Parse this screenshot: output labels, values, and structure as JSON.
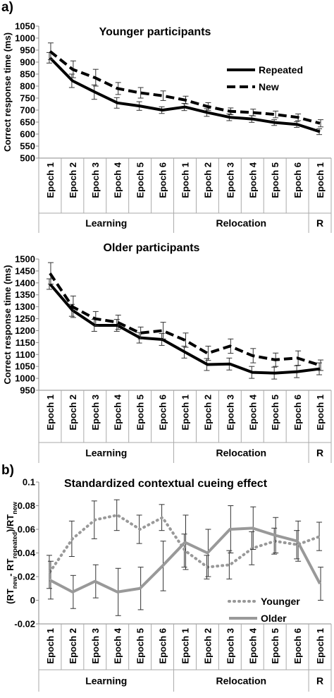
{
  "chart_data": [
    {
      "panel_label": "a)",
      "type": "line",
      "title": "Younger participants",
      "ylabel": "Correct response time (ms)",
      "ylim": [
        500,
        1050
      ],
      "yticks": [
        "500",
        "550",
        "600",
        "650",
        "700",
        "750",
        "800",
        "850",
        "900",
        "950",
        "1000",
        "1050"
      ],
      "categories": [
        "Epoch 1",
        "Epoch 2",
        "Epoch 3",
        "Epoch 4",
        "Epoch 5",
        "Epoch 6",
        "Epoch 1",
        "Epoch 2",
        "Epoch 3",
        "Epoch 4",
        "Epoch 5",
        "Epoch 6",
        "Epoch 1"
      ],
      "groups": [
        {
          "label": "Learning",
          "span": 6
        },
        {
          "label": "Relocation",
          "span": 6
        },
        {
          "label": "R",
          "span": 1
        }
      ],
      "legend_position": "top-right",
      "series": [
        {
          "name": "Repeated",
          "style": "solid",
          "color": "#000000",
          "values": [
            918,
            822,
            775,
            730,
            717,
            700,
            713,
            690,
            670,
            663,
            648,
            640,
            610
          ],
          "errors": [
            22,
            28,
            30,
            22,
            18,
            14,
            15,
            16,
            14,
            14,
            12,
            12,
            12
          ]
        },
        {
          "name": "New",
          "style": "dashed",
          "color": "#000000",
          "values": [
            945,
            870,
            835,
            790,
            772,
            760,
            742,
            715,
            695,
            690,
            682,
            670,
            645
          ],
          "errors": [
            35,
            35,
            35,
            25,
            22,
            20,
            16,
            16,
            14,
            14,
            14,
            14,
            15
          ]
        }
      ]
    },
    {
      "type": "line",
      "title": "Older participants",
      "ylabel": "Correct response time (ms)",
      "ylim": [
        950,
        1500
      ],
      "yticks": [
        "950",
        "1000",
        "1050",
        "1100",
        "1150",
        "1200",
        "1250",
        "1300",
        "1350",
        "1400",
        "1450",
        "1500"
      ],
      "categories": [
        "Epoch 1",
        "Epoch 2",
        "Epoch 3",
        "Epoch 4",
        "Epoch 5",
        "Epoch 6",
        "Epoch 1",
        "Epoch 2",
        "Epoch 3",
        "Epoch 4",
        "Epoch 5",
        "Epoch 6",
        "Epoch 1"
      ],
      "groups": [
        {
          "label": "Learning",
          "span": 6
        },
        {
          "label": "Relocation",
          "span": 6
        },
        {
          "label": "R",
          "span": 1
        }
      ],
      "series": [
        {
          "name": "Repeated",
          "style": "solid",
          "color": "#000000",
          "values": [
            1395,
            1285,
            1222,
            1222,
            1170,
            1163,
            1110,
            1058,
            1060,
            1025,
            1022,
            1028,
            1040
          ],
          "errors": [
            22,
            25,
            25,
            25,
            22,
            25,
            25,
            25,
            25,
            25,
            25,
            25,
            25
          ]
        },
        {
          "name": "New",
          "style": "dashed",
          "color": "#000000",
          "values": [
            1440,
            1300,
            1250,
            1235,
            1190,
            1200,
            1160,
            1105,
            1135,
            1095,
            1078,
            1085,
            1055
          ],
          "errors": [
            45,
            45,
            30,
            30,
            25,
            35,
            30,
            30,
            30,
            30,
            28,
            30,
            22
          ]
        }
      ]
    },
    {
      "panel_label": "b)",
      "type": "line",
      "title": "Standardized contextual cueing effect",
      "ylabel": "(RTnew- RTrepeated)/RTnew",
      "ylabel_parts": {
        "open": "(RT",
        "sub_new": "new",
        "mid": "- RT",
        "sub_rep": "repeated",
        "close": ")/RT",
        "sub_new2": "new"
      },
      "ylim": [
        -0.02,
        0.1
      ],
      "yticks": [
        "-0.02",
        "0",
        "0.02",
        "0.04",
        "0.06",
        "0.08",
        "0.1"
      ],
      "categories": [
        "Epoch 1",
        "Epoch 2",
        "Epoch 3",
        "Epoch 4",
        "Epoch 5",
        "Epoch 6",
        "Epoch 1",
        "Epoch 2",
        "Epoch 3",
        "Epoch 4",
        "Epoch 5",
        "Epoch 6",
        "Epoch 1"
      ],
      "groups": [
        {
          "label": "Learning",
          "span": 6
        },
        {
          "label": "Relocation",
          "span": 6
        },
        {
          "label": "R",
          "span": 1
        }
      ],
      "legend_position": "bottom-right",
      "series": [
        {
          "name": "Younger",
          "style": "dotted",
          "color": "#999999",
          "values": [
            0.024,
            0.052,
            0.068,
            0.072,
            0.06,
            0.07,
            0.042,
            0.028,
            0.03,
            0.044,
            0.05,
            0.047,
            0.054
          ],
          "errors": [
            0.014,
            0.015,
            0.016,
            0.013,
            0.012,
            0.011,
            0.014,
            0.01,
            0.012,
            0.014,
            0.011,
            0.012,
            0.012
          ]
        },
        {
          "name": "Older",
          "style": "solid",
          "color": "#999999",
          "values": [
            0.017,
            0.007,
            0.016,
            0.007,
            0.01,
            0.029,
            0.049,
            0.04,
            0.06,
            0.061,
            0.055,
            0.05,
            0.014
          ],
          "errors": [
            0.016,
            0.014,
            0.014,
            0.02,
            0.018,
            0.021,
            0.023,
            0.02,
            0.02,
            0.018,
            0.015,
            0.017,
            0.014
          ]
        }
      ]
    }
  ]
}
